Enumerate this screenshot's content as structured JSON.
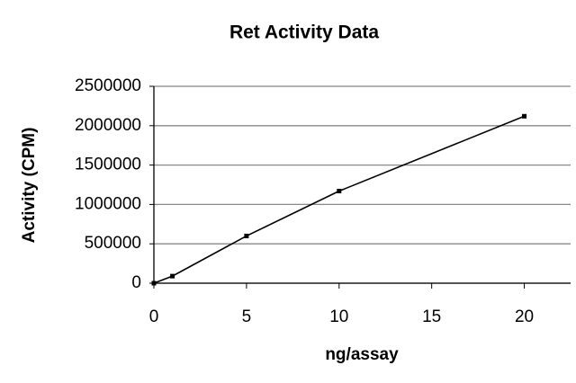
{
  "chart_data": {
    "type": "line",
    "title": "Ret Activity Data",
    "x_label": "ng/assay",
    "y_label": "Activity (CPM)",
    "x": [
      0,
      1,
      5,
      10,
      20
    ],
    "series": [
      {
        "name": "Activity",
        "color": "#000000",
        "values": [
          0,
          90000,
          600000,
          1170000,
          2120000
        ]
      }
    ],
    "xlim": [
      0,
      22.5
    ],
    "xticks": [
      0,
      5,
      10,
      15,
      20
    ],
    "ylim": [
      0,
      2500000
    ],
    "yticks": [
      0,
      500000,
      1000000,
      1500000,
      2000000,
      2500000
    ],
    "grid": true
  }
}
